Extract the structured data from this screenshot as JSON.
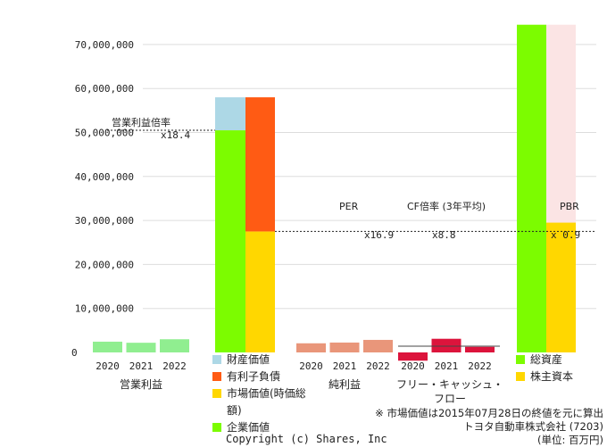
{
  "chart_data": {
    "type": "bar",
    "y_ticks": [
      "0",
      "10,000,000",
      "20,000,000",
      "30,000,000",
      "40,000,000",
      "50,000,000",
      "60,000,000",
      "70,000,000"
    ],
    "ylim": [
      0,
      75000000
    ],
    "years": [
      "2020",
      "2021",
      "2022"
    ],
    "groups": [
      {
        "label": "営業利益",
        "color": "#90ee90",
        "values": [
          2442869,
          2197748,
          2995697
        ]
      },
      {
        "label": "純利益",
        "color": "#e9967a",
        "values": [
          2076183,
          2245261,
          2850110
        ]
      },
      {
        "label": "フリー・キャッシュ・フロー",
        "color": "#dc143c",
        "values": [
          -1874235,
          3102390,
          1267016
        ]
      }
    ],
    "valuation": {
      "market_value": 27500000,
      "interest_bearing_debt": 30500000,
      "business_assets": 7500000,
      "enterprise_value": 50500000,
      "total_assets": 74500000,
      "equity": 29500000,
      "colors": {
        "business_assets": "#add8e6",
        "interest_bearing_debt": "#ff5b14",
        "market_value": "#ffd700",
        "enterprise_value": "#7cfc00",
        "total_assets": "#7cfc00",
        "equity": "#ffd700",
        "total_assets_bg": "#fbe4e4"
      }
    },
    "annotations": {
      "op_multiple_label": "営業利益倍率",
      "op_multiple_value": "x18.4",
      "per_label": "PER",
      "per_value": "x16.9",
      "cf_label": "CF倍率 (3年平均)",
      "cf_value": "x8.8",
      "pbr_label": "PBR",
      "pbr_value": "x 0.9"
    },
    "legend_left": [
      {
        "label": "財産価値",
        "color": "#add8e6"
      },
      {
        "label": "有利子負債",
        "color": "#ff5b14"
      },
      {
        "label": "市場価値(時価総額)",
        "color": "#ffd700"
      },
      {
        "label": "企業価値",
        "color": "#7cfc00"
      }
    ],
    "legend_right": [
      {
        "label": "総資産",
        "color": "#7cfc00"
      },
      {
        "label": "株主資本",
        "color": "#ffd700"
      }
    ]
  },
  "note": {
    "line1": "※ 市場価値は2015年07月28日の終値を元に算出",
    "line2": "トヨタ自動車株式会社 (7203)",
    "line3": "(単位: 百万円)"
  },
  "copyright": "Copyright (c) Shares, Inc"
}
